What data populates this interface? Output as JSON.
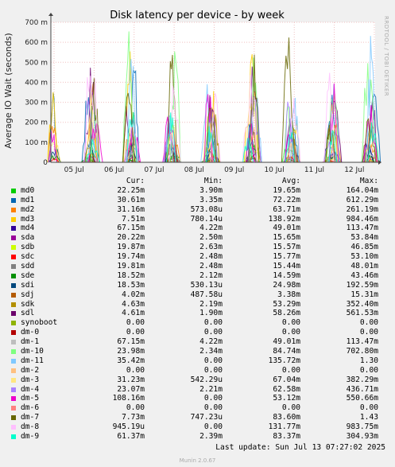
{
  "chart_data": {
    "type": "line",
    "title": "Disk latency per device - by week",
    "ylabel": "Average IO Wait (seconds)",
    "ylim": [
      0,
      700
    ],
    "yticks": [
      {
        "v": 0,
        "label": "0"
      },
      {
        "v": 100,
        "label": "100 m"
      },
      {
        "v": 200,
        "label": "200 m"
      },
      {
        "v": 300,
        "label": "300 m"
      },
      {
        "v": 400,
        "label": "400 m"
      },
      {
        "v": 500,
        "label": "500 m"
      },
      {
        "v": 600,
        "label": "600 m"
      },
      {
        "v": 700,
        "label": "700 m"
      }
    ],
    "xticks": [
      "05 Jul",
      "06 Jul",
      "07 Jul",
      "08 Jul",
      "09 Jul",
      "10 Jul",
      "11 Jul",
      "12 Jul"
    ],
    "grid": true,
    "side_label": "RRDTOOL / TOBI OETIKER",
    "spike_days": [
      0,
      1,
      2,
      3,
      4,
      5,
      6,
      7,
      8
    ],
    "series": [
      {
        "name": "md0",
        "color": "#00cc00",
        "cur": "22.25m",
        "min": "3.90m",
        "avg": "19.65m",
        "max": "164.04m"
      },
      {
        "name": "md1",
        "color": "#0066b3",
        "cur": "30.61m",
        "min": "3.35m",
        "avg": "72.22m",
        "max": "612.29m"
      },
      {
        "name": "md2",
        "color": "#ff8000",
        "cur": "31.16m",
        "min": "573.08u",
        "avg": "63.71m",
        "max": "261.19m"
      },
      {
        "name": "md3",
        "color": "#ffcc00",
        "cur": "7.51m",
        "min": "780.14u",
        "avg": "138.92m",
        "max": "984.46m"
      },
      {
        "name": "md4",
        "color": "#330099",
        "cur": "67.15m",
        "min": "4.22m",
        "avg": "49.01m",
        "max": "113.47m"
      },
      {
        "name": "sda",
        "color": "#990099",
        "cur": "20.22m",
        "min": "2.50m",
        "avg": "15.65m",
        "max": "53.84m"
      },
      {
        "name": "sdb",
        "color": "#ccff00",
        "cur": "19.87m",
        "min": "2.63m",
        "avg": "15.57m",
        "max": "46.85m"
      },
      {
        "name": "sdc",
        "color": "#ff0000",
        "cur": "19.74m",
        "min": "2.48m",
        "avg": "15.77m",
        "max": "53.10m"
      },
      {
        "name": "sdd",
        "color": "#808080",
        "cur": "19.81m",
        "min": "2.48m",
        "avg": "15.44m",
        "max": "48.01m"
      },
      {
        "name": "sde",
        "color": "#008f00",
        "cur": "18.52m",
        "min": "2.12m",
        "avg": "14.59m",
        "max": "43.46m"
      },
      {
        "name": "sdi",
        "color": "#00487d",
        "cur": "18.53m",
        "min": "530.13u",
        "avg": "24.98m",
        "max": "192.59m"
      },
      {
        "name": "sdj",
        "color": "#b35a00",
        "cur": "4.02m",
        "min": "487.58u",
        "avg": "3.38m",
        "max": "15.31m"
      },
      {
        "name": "sdk",
        "color": "#b38f00",
        "cur": "4.63m",
        "min": "2.19m",
        "avg": "53.29m",
        "max": "352.40m"
      },
      {
        "name": "sdl",
        "color": "#6b006b",
        "cur": "4.61m",
        "min": "1.90m",
        "avg": "58.26m",
        "max": "561.53m"
      },
      {
        "name": "synoboot",
        "color": "#8fb300",
        "cur": "0.00",
        "min": "0.00",
        "avg": "0.00",
        "max": "0.00"
      },
      {
        "name": "dm-0",
        "color": "#b30000",
        "cur": "0.00",
        "min": "0.00",
        "avg": "0.00",
        "max": "0.00"
      },
      {
        "name": "dm-1",
        "color": "#bebebe",
        "cur": "67.15m",
        "min": "4.22m",
        "avg": "49.01m",
        "max": "113.47m"
      },
      {
        "name": "dm-10",
        "color": "#80ff80",
        "cur": "23.98m",
        "min": "2.34m",
        "avg": "84.74m",
        "max": "702.80m"
      },
      {
        "name": "dm-11",
        "color": "#80c9ff",
        "cur": "35.42m",
        "min": "0.00",
        "avg": "135.72m",
        "max": "1.30"
      },
      {
        "name": "dm-2",
        "color": "#ffc080",
        "cur": "0.00",
        "min": "0.00",
        "avg": "0.00",
        "max": "0.00"
      },
      {
        "name": "dm-3",
        "color": "#ffe680",
        "cur": "31.23m",
        "min": "542.29u",
        "avg": "67.04m",
        "max": "382.29m"
      },
      {
        "name": "dm-4",
        "color": "#aa80ff",
        "cur": "23.07m",
        "min": "2.21m",
        "avg": "62.58m",
        "max": "436.71m"
      },
      {
        "name": "dm-5",
        "color": "#ee00cc",
        "cur": "108.16m",
        "min": "0.00",
        "avg": "53.12m",
        "max": "550.66m"
      },
      {
        "name": "dm-6",
        "color": "#ff8080",
        "cur": "0.00",
        "min": "0.00",
        "avg": "0.00",
        "max": "0.00"
      },
      {
        "name": "dm-7",
        "color": "#666600",
        "cur": "7.73m",
        "min": "747.23u",
        "avg": "83.60m",
        "max": "1.43"
      },
      {
        "name": "dm-8",
        "color": "#ffbfff",
        "cur": "945.19u",
        "min": "0.00",
        "avg": "131.77m",
        "max": "983.75m"
      },
      {
        "name": "dm-9",
        "color": "#00ffcc",
        "cur": "61.37m",
        "min": "2.39m",
        "avg": "83.37m",
        "max": "304.93m"
      }
    ]
  },
  "legend_headers": {
    "cur": "Cur:",
    "min": "Min:",
    "avg": "Avg:",
    "max": "Max:"
  },
  "footer": {
    "last_update": "Last update: Sun Jul 13 07:27:02 2025",
    "munin": "Munin 2.0.67"
  }
}
